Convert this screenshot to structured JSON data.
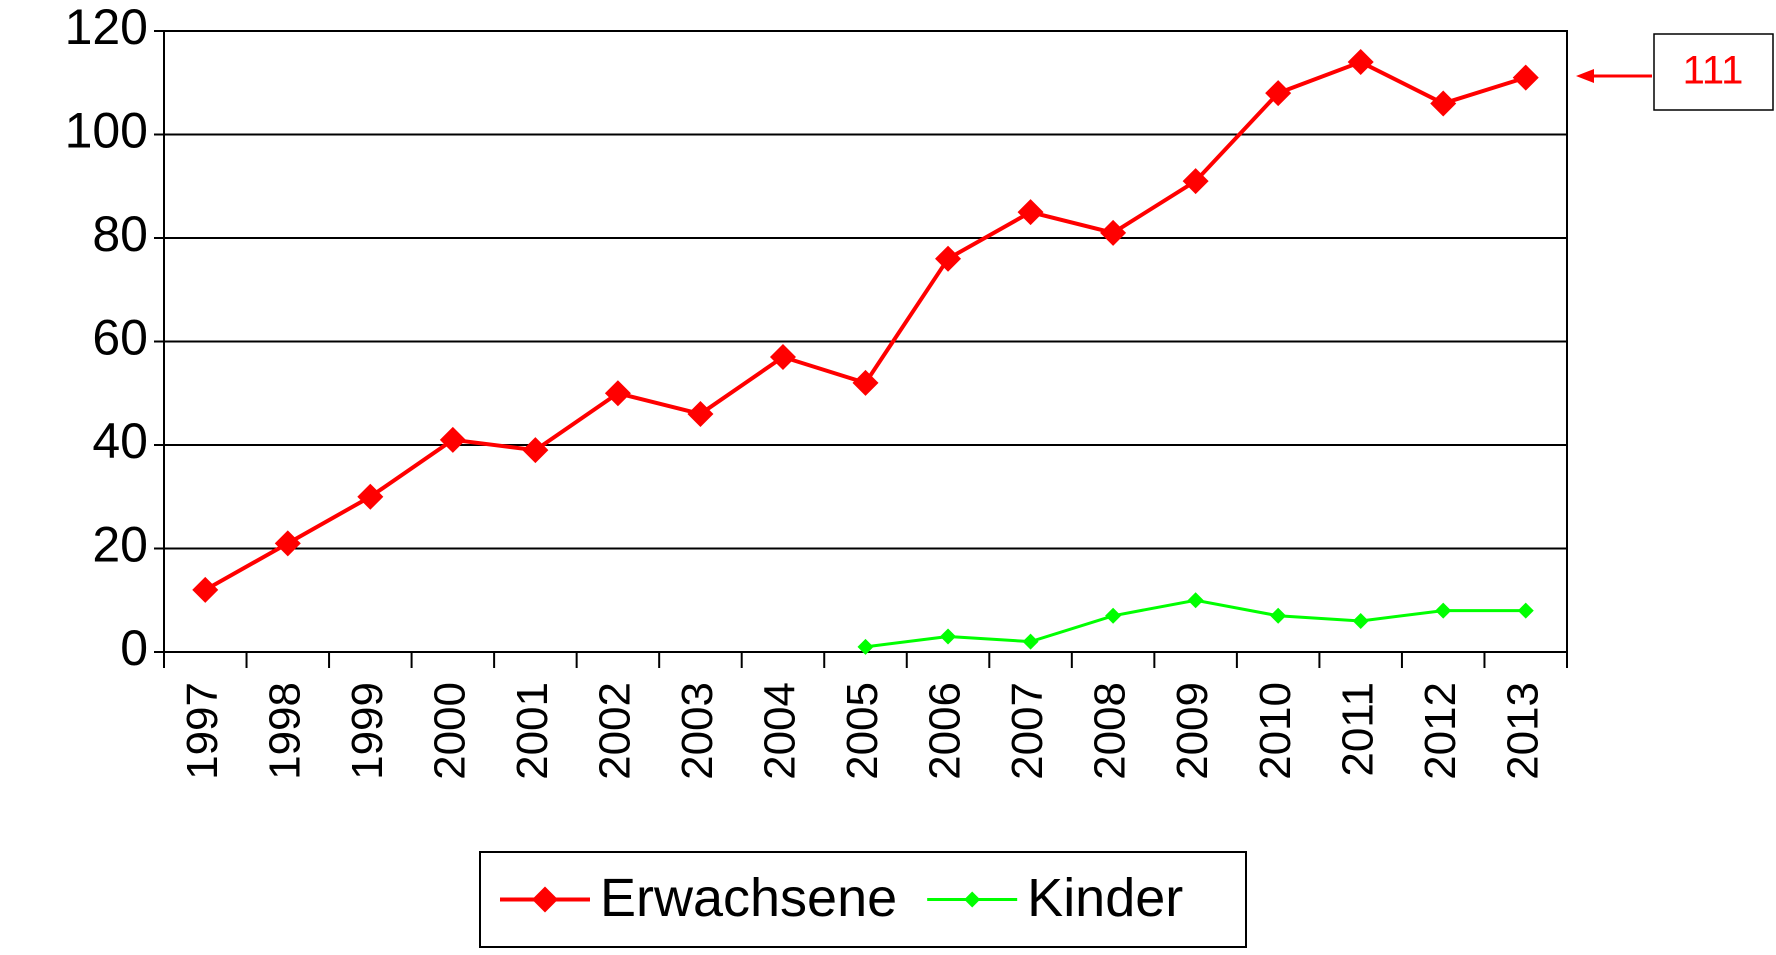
{
  "chart_data": {
    "type": "line",
    "categories": [
      "1997",
      "1998",
      "1999",
      "2000",
      "2001",
      "2002",
      "2003",
      "2004",
      "2005",
      "2006",
      "2007",
      "2008",
      "2009",
      "2010",
      "2011",
      "2012",
      "2013"
    ],
    "series": [
      {
        "name": "Erwachsene",
        "color": "#ff0000",
        "marker": "diamond",
        "values": [
          12,
          21,
          30,
          41,
          39,
          50,
          46,
          57,
          52,
          76,
          85,
          81,
          91,
          108,
          114,
          106,
          111
        ]
      },
      {
        "name": "Kinder",
        "color": "#00ff00",
        "marker": "diamond",
        "values": [
          null,
          null,
          null,
          null,
          null,
          null,
          null,
          null,
          1,
          3,
          2,
          7,
          10,
          7,
          6,
          8,
          8
        ]
      }
    ],
    "ylim": [
      0,
      120
    ],
    "yticks": [
      0,
      20,
      40,
      60,
      80,
      100,
      120
    ],
    "grid": true,
    "annotation": "111",
    "legend": "bottom"
  }
}
